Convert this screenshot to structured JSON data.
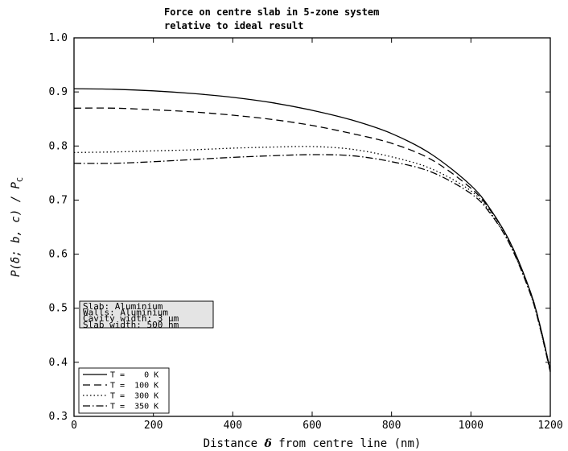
{
  "chart_data": {
    "type": "line",
    "title_line1": "Force on centre slab in 5-zone system",
    "title_line2": "relative to ideal result",
    "xlabel_pre": "Distance ",
    "xlabel_sym": "δ",
    "xlabel_post": " from centre line (nm)",
    "ylabel": "P(δ; b, c) / P",
    "ylabel_sub": "C",
    "xlim": [
      0,
      1200
    ],
    "ylim": [
      0.3,
      1.0
    ],
    "x_ticks": [
      "0",
      "200",
      "400",
      "600",
      "800",
      "1000",
      "1200"
    ],
    "y_ticks": [
      "0.3",
      "0.4",
      "0.5",
      "0.6",
      "0.7",
      "0.8",
      "0.9",
      "1.0"
    ],
    "grid": false,
    "legend_position": "bottom-left",
    "info_box": [
      "Slab:  Aluminium",
      "Walls:  Aluminium",
      "Cavity width:  3 μm",
      "Slab width:  500 nm"
    ],
    "x": [
      0,
      100,
      200,
      300,
      400,
      500,
      600,
      700,
      800,
      900,
      1000,
      1050,
      1100,
      1150,
      1175,
      1200
    ],
    "series": [
      {
        "name": "T =    0 K",
        "style": "solid",
        "values": [
          0.906,
          0.905,
          0.902,
          0.897,
          0.89,
          0.88,
          0.866,
          0.848,
          0.823,
          0.785,
          0.727,
          0.682,
          0.62,
          0.53,
          0.465,
          0.385
        ]
      },
      {
        "name": "T =  100 K",
        "style": "dashed",
        "values": [
          0.87,
          0.87,
          0.867,
          0.863,
          0.857,
          0.849,
          0.838,
          0.823,
          0.805,
          0.775,
          0.722,
          0.68,
          0.62,
          0.53,
          0.465,
          0.385
        ]
      },
      {
        "name": "T =  300 K",
        "style": "dotted",
        "values": [
          0.788,
          0.789,
          0.791,
          0.793,
          0.796,
          0.798,
          0.799,
          0.794,
          0.78,
          0.758,
          0.717,
          0.676,
          0.616,
          0.527,
          0.462,
          0.383
        ]
      },
      {
        "name": "T =  350 K",
        "style": "dashdot",
        "values": [
          0.768,
          0.768,
          0.771,
          0.775,
          0.779,
          0.782,
          0.784,
          0.782,
          0.771,
          0.752,
          0.712,
          0.674,
          0.615,
          0.526,
          0.461,
          0.382
        ]
      }
    ]
  }
}
